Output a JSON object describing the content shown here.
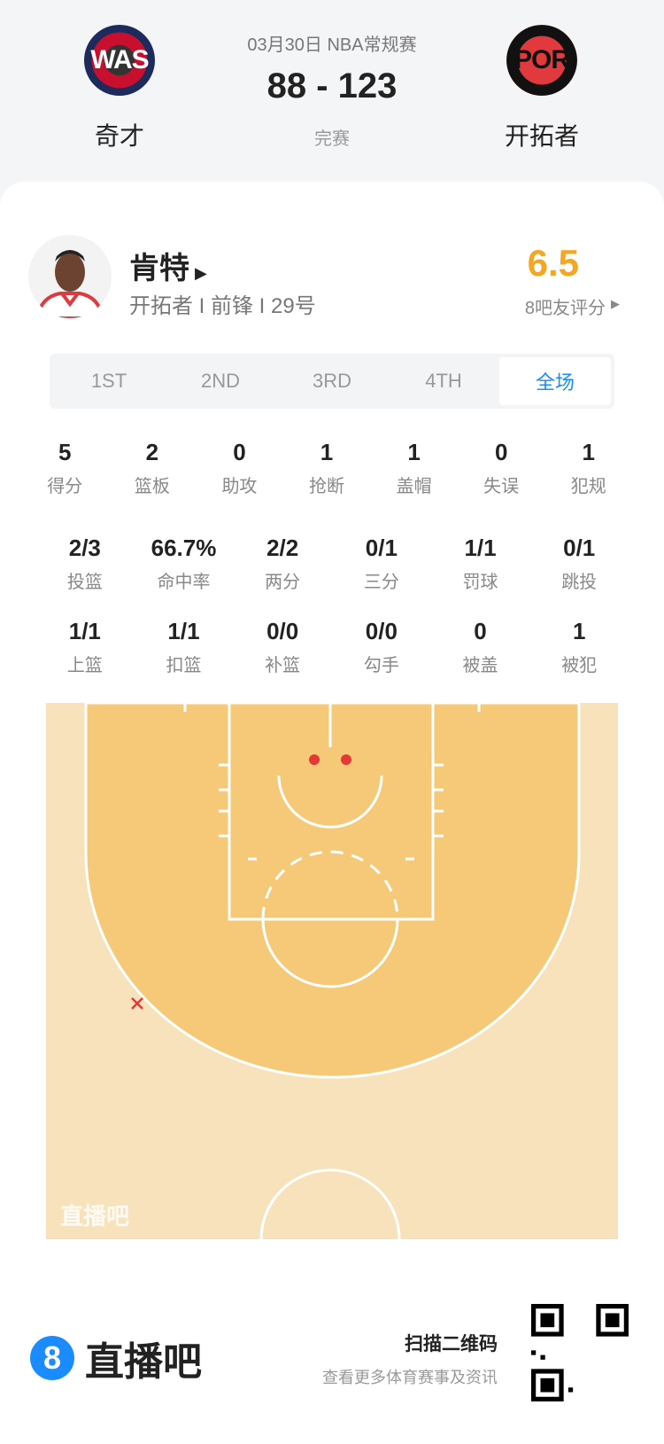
{
  "match": {
    "date_league": "03月30日 NBA常规赛",
    "score": "88 - 123",
    "status": "完赛",
    "home": {
      "abbr": "WAS",
      "name": "奇才"
    },
    "away": {
      "abbr": "POR",
      "name": "开拓者"
    }
  },
  "player": {
    "name": "肯特",
    "info": "开拓者 I 前锋 I 29号",
    "rating": "6.5",
    "rating_label": "8吧友评分"
  },
  "tabs": [
    {
      "label": "1ST"
    },
    {
      "label": "2ND"
    },
    {
      "label": "3RD"
    },
    {
      "label": "4TH"
    },
    {
      "label": "全场"
    }
  ],
  "active_tab": "全场",
  "stats_row1": [
    {
      "v": "5",
      "l": "得分"
    },
    {
      "v": "2",
      "l": "篮板"
    },
    {
      "v": "0",
      "l": "助攻"
    },
    {
      "v": "1",
      "l": "抢断"
    },
    {
      "v": "1",
      "l": "盖帽"
    },
    {
      "v": "0",
      "l": "失误"
    },
    {
      "v": "1",
      "l": "犯规"
    }
  ],
  "stats_row2": [
    {
      "v": "2/3",
      "l": "投篮"
    },
    {
      "v": "66.7%",
      "l": "命中率"
    },
    {
      "v": "2/2",
      "l": "两分"
    },
    {
      "v": "0/1",
      "l": "三分"
    },
    {
      "v": "1/1",
      "l": "罚球"
    },
    {
      "v": "0/1",
      "l": "跳投"
    }
  ],
  "stats_row3": [
    {
      "v": "1/1",
      "l": "上篮"
    },
    {
      "v": "1/1",
      "l": "扣篮"
    },
    {
      "v": "0/0",
      "l": "补篮"
    },
    {
      "v": "0/0",
      "l": "勾手"
    },
    {
      "v": "0",
      "l": "被盖"
    },
    {
      "v": "1",
      "l": "被犯"
    }
  ],
  "court": {
    "watermark": "直播吧",
    "shots": [
      {
        "result": "made"
      },
      {
        "result": "made"
      },
      {
        "result": "missed"
      }
    ]
  },
  "footer": {
    "brand": "直播吧",
    "scan_title": "扫描二维码",
    "scan_sub": "查看更多体育赛事及资讯"
  },
  "colors": {
    "accent": "#1a8cff",
    "rating": "#f5a623",
    "made": "#e53935",
    "court_inner": "#f6c978",
    "court_outer": "#f8e2bb"
  }
}
